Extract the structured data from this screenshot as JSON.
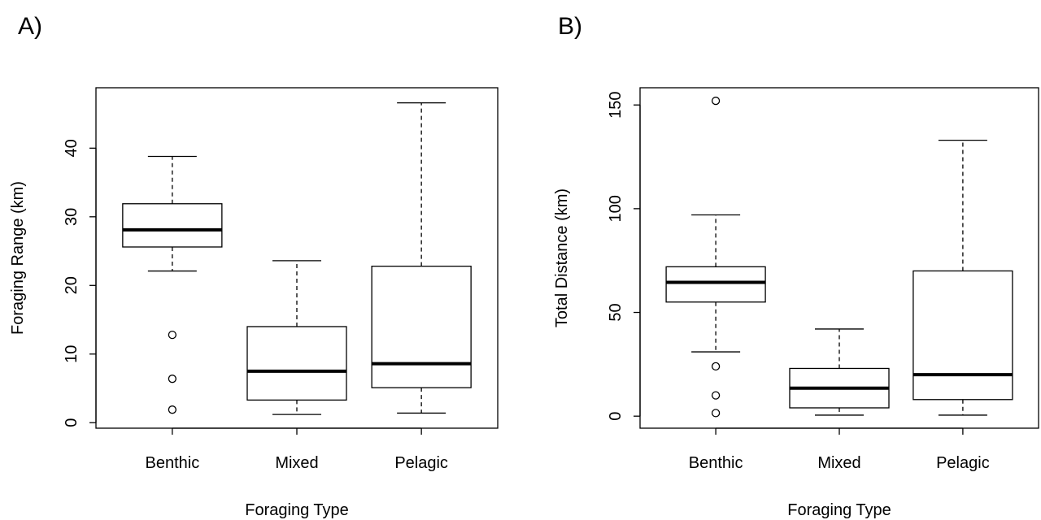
{
  "chart_data": [
    {
      "type": "boxplot",
      "panel_label": "A)",
      "xlabel": "Foraging Type",
      "ylabel": "Foraging Range (km)",
      "categories": [
        "Benthic",
        "Mixed",
        "Pelagic"
      ],
      "yticks": [
        0,
        10,
        20,
        30,
        40
      ],
      "ylim": [
        -0.8,
        48.8
      ],
      "boxes": [
        {
          "category": "Benthic",
          "whisker_low": 22.1,
          "q1": 25.6,
          "median": 28.1,
          "q3": 31.9,
          "whisker_high": 38.8,
          "outliers": [
            12.8,
            6.4,
            1.9
          ]
        },
        {
          "category": "Mixed",
          "whisker_low": 1.2,
          "q1": 3.3,
          "median": 7.5,
          "q3": 14.0,
          "whisker_high": 23.6,
          "outliers": []
        },
        {
          "category": "Pelagic",
          "whisker_low": 1.4,
          "q1": 5.1,
          "median": 8.6,
          "q3": 22.8,
          "whisker_high": 46.6,
          "outliers": []
        }
      ]
    },
    {
      "type": "boxplot",
      "panel_label": "B)",
      "xlabel": "Foraging Type",
      "ylabel": "Total Distance (km)",
      "categories": [
        "Benthic",
        "Mixed",
        "Pelagic"
      ],
      "yticks": [
        0,
        50,
        100,
        150
      ],
      "ylim": [
        -5.8,
        158.3
      ],
      "boxes": [
        {
          "category": "Benthic",
          "whisker_low": 31,
          "q1": 55,
          "median": 64.5,
          "q3": 72,
          "whisker_high": 97,
          "outliers": [
            24,
            10,
            1.5,
            152
          ]
        },
        {
          "category": "Mixed",
          "whisker_low": 0.5,
          "q1": 4,
          "median": 13.5,
          "q3": 23,
          "whisker_high": 42,
          "outliers": []
        },
        {
          "category": "Pelagic",
          "whisker_low": 0.5,
          "q1": 8,
          "median": 20,
          "q3": 70,
          "whisker_high": 133,
          "outliers": []
        }
      ]
    }
  ]
}
